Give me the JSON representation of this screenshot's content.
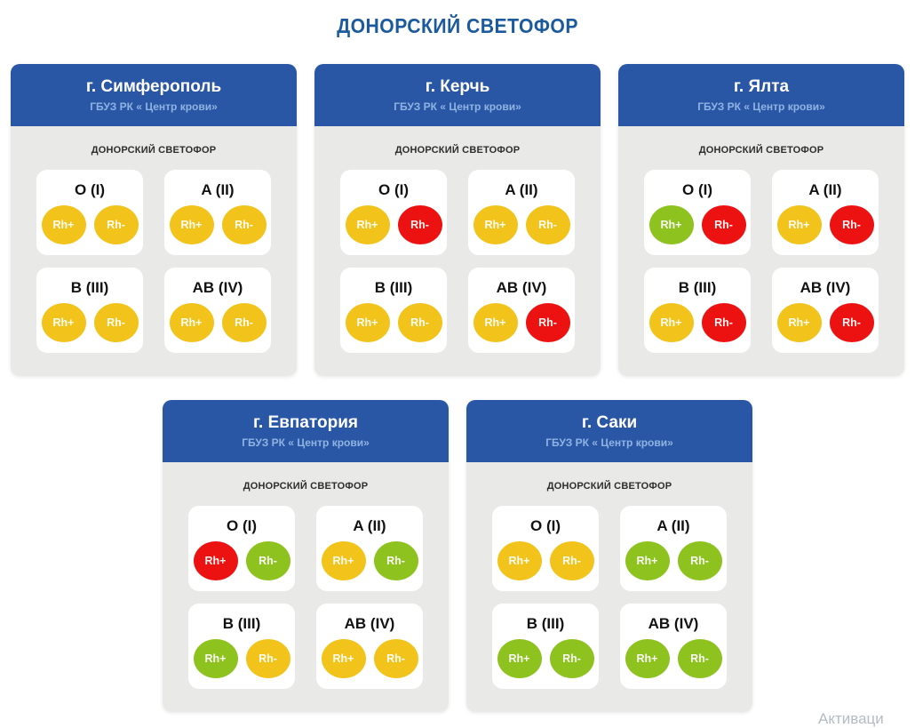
{
  "page_title": "ДОНОРСКИЙ СВЕТОФОР",
  "watermark": "Активаци",
  "legend": {
    "rh_plus": "Rh+",
    "rh_minus": "Rh-"
  },
  "colors": {
    "title_blue": "#1c5a9e",
    "header_blue": "#2a57a5",
    "card_grey": "#e9e9e7",
    "status_yellow": "#f2c31b",
    "status_red": "#ec1212",
    "status_green": "#8dc21f"
  },
  "centers": [
    {
      "city": "г. Симферополь",
      "org": "ГБУЗ РК « Центр крови»",
      "widget_title": "ДОНОРСКИЙ СВЕТОФОР",
      "blood_groups": [
        {
          "type": "O (I)",
          "rh_plus": "yellow",
          "rh_minus": "yellow"
        },
        {
          "type": "A (II)",
          "rh_plus": "yellow",
          "rh_minus": "yellow"
        },
        {
          "type": "B (III)",
          "rh_plus": "yellow",
          "rh_minus": "yellow"
        },
        {
          "type": "AB (IV)",
          "rh_plus": "yellow",
          "rh_minus": "yellow"
        }
      ]
    },
    {
      "city": "г. Керчь",
      "org": "ГБУЗ РК « Центр крови»",
      "widget_title": "ДОНОРСКИЙ СВЕТОФОР",
      "blood_groups": [
        {
          "type": "O (I)",
          "rh_plus": "yellow",
          "rh_minus": "red"
        },
        {
          "type": "A (II)",
          "rh_plus": "yellow",
          "rh_minus": "yellow"
        },
        {
          "type": "B (III)",
          "rh_plus": "yellow",
          "rh_minus": "yellow"
        },
        {
          "type": "AB (IV)",
          "rh_plus": "yellow",
          "rh_minus": "red"
        }
      ]
    },
    {
      "city": "г. Ялта",
      "org": "ГБУЗ РК « Центр крови»",
      "widget_title": "ДОНОРСКИЙ СВЕТОФОР",
      "blood_groups": [
        {
          "type": "O (I)",
          "rh_plus": "green",
          "rh_minus": "red"
        },
        {
          "type": "A (II)",
          "rh_plus": "yellow",
          "rh_minus": "red"
        },
        {
          "type": "B (III)",
          "rh_plus": "yellow",
          "rh_minus": "red"
        },
        {
          "type": "AB (IV)",
          "rh_plus": "yellow",
          "rh_minus": "red"
        }
      ]
    },
    {
      "city": "г. Евпатория",
      "org": "ГБУЗ РК « Центр крови»",
      "widget_title": "ДОНОРСКИЙ СВЕТОФОР",
      "blood_groups": [
        {
          "type": "O (I)",
          "rh_plus": "red",
          "rh_minus": "green"
        },
        {
          "type": "A (II)",
          "rh_plus": "yellow",
          "rh_minus": "green"
        },
        {
          "type": "B (III)",
          "rh_plus": "green",
          "rh_minus": "yellow"
        },
        {
          "type": "AB (IV)",
          "rh_plus": "yellow",
          "rh_minus": "yellow"
        }
      ]
    },
    {
      "city": "г. Саки",
      "org": "ГБУЗ РК « Центр крови»",
      "widget_title": "ДОНОРСКИЙ СВЕТОФОР",
      "blood_groups": [
        {
          "type": "O (I)",
          "rh_plus": "yellow",
          "rh_minus": "yellow"
        },
        {
          "type": "A (II)",
          "rh_plus": "green",
          "rh_minus": "green"
        },
        {
          "type": "B (III)",
          "rh_plus": "green",
          "rh_minus": "green"
        },
        {
          "type": "AB (IV)",
          "rh_plus": "green",
          "rh_minus": "green"
        }
      ]
    }
  ]
}
